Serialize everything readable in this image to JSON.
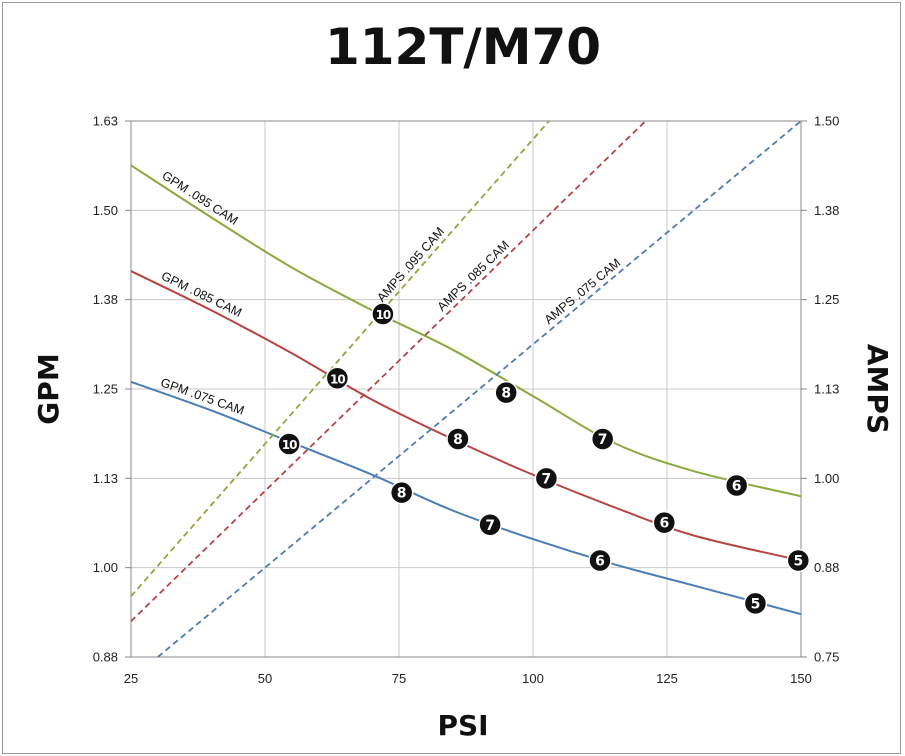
{
  "chart_data": {
    "type": "line",
    "title": "112T/M70",
    "xlabel": "PSI",
    "ylabel": "GPM",
    "y2label": "AMPS",
    "xlim": [
      25,
      150
    ],
    "ylim": [
      0.875,
      1.625
    ],
    "y2lim": [
      0.75,
      1.5
    ],
    "x_ticks": [
      25,
      50,
      75,
      100,
      125,
      150
    ],
    "y_tick_labels": [
      "0.88",
      "1.00",
      "1.13",
      "1.25",
      "1.38",
      "1.50",
      "1.63"
    ],
    "y2_tick_labels": [
      "0.75",
      "0.88",
      "1.00",
      "1.13",
      "1.25",
      "1.38",
      "1.50"
    ],
    "grid": true,
    "series": [
      {
        "name": "GPM .095 CAM",
        "axis": "left",
        "color": "#8aaa3c",
        "dash": false,
        "x": [
          25,
          40,
          55,
          70,
          85,
          100,
          115,
          130,
          150
        ],
        "y": [
          1.563,
          1.49,
          1.42,
          1.36,
          1.305,
          1.24,
          1.175,
          1.135,
          1.1
        ],
        "markers": [
          {
            "x": 72,
            "y": 1.355,
            "label": "10"
          },
          {
            "x": 95,
            "y": 1.245,
            "label": "8"
          },
          {
            "x": 113,
            "y": 1.18,
            "label": "7"
          },
          {
            "x": 138,
            "y": 1.115,
            "label": "6"
          }
        ]
      },
      {
        "name": "GPM .085 CAM",
        "axis": "left",
        "color": "#b84441",
        "dash": false,
        "x": [
          25,
          40,
          55,
          70,
          85,
          100,
          115,
          130,
          150
        ],
        "y": [
          1.415,
          1.36,
          1.3,
          1.235,
          1.18,
          1.13,
          1.085,
          1.045,
          1.01
        ],
        "markers": [
          {
            "x": 63.5,
            "y": 1.265,
            "label": "10"
          },
          {
            "x": 86,
            "y": 1.18,
            "label": "8"
          },
          {
            "x": 102.5,
            "y": 1.125,
            "label": "7"
          },
          {
            "x": 124.5,
            "y": 1.063,
            "label": "6"
          },
          {
            "x": 149.5,
            "y": 1.01,
            "label": "5"
          }
        ]
      },
      {
        "name": "GPM .075 CAM",
        "axis": "left",
        "color": "#4a7db5",
        "dash": false,
        "x": [
          25,
          40,
          55,
          70,
          85,
          100,
          115,
          130,
          150
        ],
        "y": [
          1.26,
          1.22,
          1.175,
          1.13,
          1.08,
          1.04,
          1.005,
          0.975,
          0.935
        ],
        "markers": [
          {
            "x": 54.5,
            "y": 1.173,
            "label": "10"
          },
          {
            "x": 75.5,
            "y": 1.105,
            "label": "8"
          },
          {
            "x": 92,
            "y": 1.06,
            "label": "7"
          },
          {
            "x": 112.5,
            "y": 1.01,
            "label": "6"
          },
          {
            "x": 141.5,
            "y": 0.95,
            "label": "5"
          }
        ]
      },
      {
        "name": "AMPS .095 CAM",
        "axis": "right",
        "color": "#8aaa3c",
        "dash": true,
        "x": [
          25,
          103
        ],
        "y": [
          0.835,
          1.5
        ]
      },
      {
        "name": "AMPS .085 CAM",
        "axis": "right",
        "color": "#b84441",
        "dash": true,
        "x": [
          25,
          121
        ],
        "y": [
          0.8,
          1.5
        ]
      },
      {
        "name": "AMPS .075 CAM",
        "axis": "right",
        "color": "#4a7db5",
        "dash": true,
        "x": [
          30,
          150
        ],
        "y": [
          0.75,
          1.5
        ]
      }
    ]
  }
}
